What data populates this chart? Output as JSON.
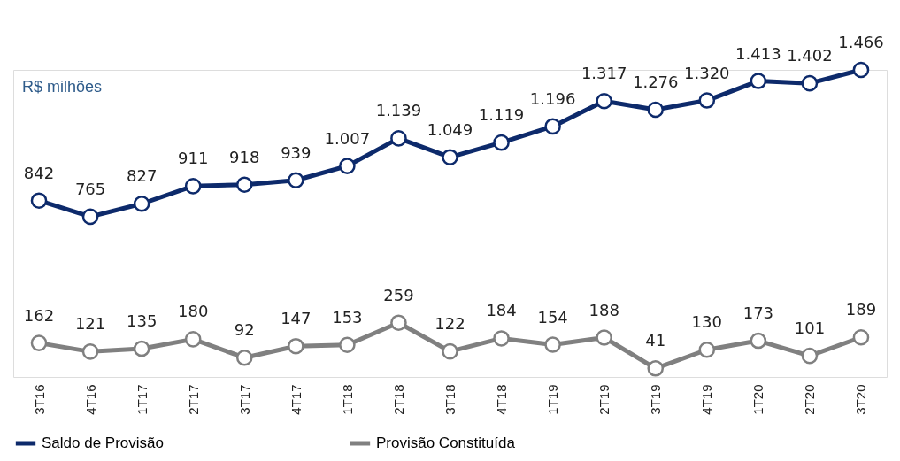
{
  "chart_data": {
    "type": "line",
    "categories": [
      "3T16",
      "4T16",
      "1T17",
      "2T17",
      "3T17",
      "4T17",
      "1T18",
      "2T18",
      "3T18",
      "4T18",
      "1T19",
      "2T19",
      "3T19",
      "4T19",
      "1T20",
      "2T20",
      "3T20"
    ],
    "series": [
      {
        "name": "Saldo de Provisão",
        "color": "#0d2a6b",
        "values": [
          842,
          765,
          827,
          911,
          918,
          939,
          1007,
          1139,
          1049,
          1119,
          1196,
          1317,
          1276,
          1320,
          1413,
          1402,
          1466
        ],
        "value_labels": [
          "842",
          "765",
          "827",
          "911",
          "918",
          "939",
          "1.007",
          "1.139",
          "1.049",
          "1.119",
          "1.196",
          "1.317",
          "1.276",
          "1.320",
          "1.413",
          "1.402",
          "1.466"
        ]
      },
      {
        "name": "Provisão Constituída",
        "color": "#808080",
        "values": [
          162,
          121,
          135,
          180,
          92,
          147,
          153,
          259,
          122,
          184,
          154,
          188,
          41,
          130,
          173,
          101,
          189
        ],
        "value_labels": [
          "162",
          "121",
          "135",
          "180",
          "92",
          "147",
          "153",
          "259",
          "122",
          "184",
          "154",
          "188",
          "41",
          "130",
          "173",
          "101",
          "189"
        ]
      }
    ],
    "annotations": [
      "R$ milhões"
    ],
    "legend": "bottom",
    "marker": "circle",
    "line_style": "solid",
    "grid": false,
    "tick_labels": "x"
  }
}
